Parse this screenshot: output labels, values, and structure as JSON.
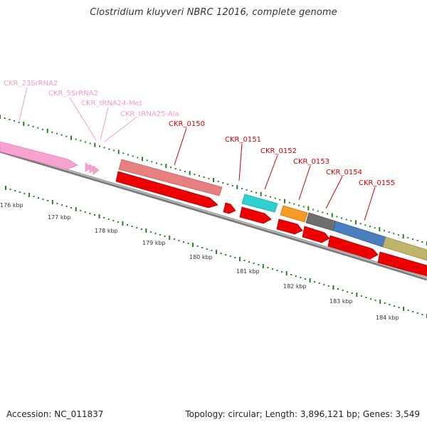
{
  "title": "Clostridium kluyveri NBRC 12016, complete genome",
  "footer": {
    "accession": "Accession: NC_011837",
    "summary": "Topology: circular; Length: 3,896,121 bp; Genes: 3,549"
  },
  "colors": {
    "rna_label": "#f59ac8",
    "gene_label": "#cc0000",
    "tick": "#2a7d2a",
    "backbone": "#7a7a7a",
    "cds_strand": "#ee0000"
  },
  "rna_labels": [
    "CKR_23SrRNA2",
    "CKR_5SrRNA2",
    "CKR_tRNA24-Met",
    "CKR_tRNA25-Ala"
  ],
  "gene_labels": [
    "CKR_0150",
    "CKR_0151",
    "CKR_0152",
    "CKR_0153",
    "CKR_0154",
    "CKR_0155"
  ],
  "scale_labels": [
    "176 kbp",
    "177 kbp",
    "178 kbp",
    "179 kbp",
    "180 kbp",
    "181 kbp",
    "182 kbp",
    "183 kbp",
    "184 kbp"
  ]
}
